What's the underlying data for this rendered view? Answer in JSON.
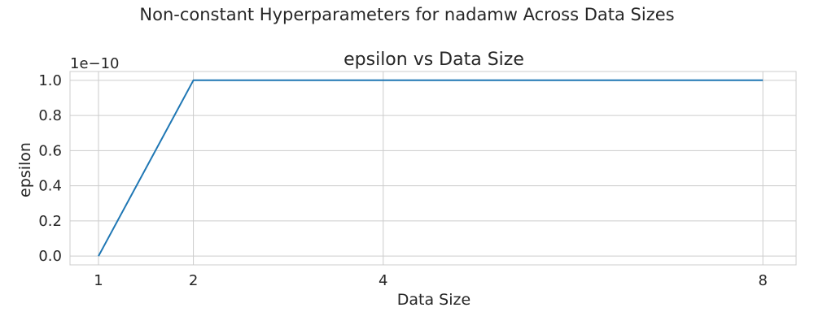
{
  "figure": {
    "suptitle": "Non-constant Hyperparameters for nadamw Across Data Sizes"
  },
  "chart_data": {
    "type": "line",
    "title": "epsilon vs Data Size",
    "xlabel": "Data Size",
    "ylabel": "epsilon",
    "offset_label": "1e−10",
    "xticks": [
      1,
      2,
      4,
      8
    ],
    "xtick_labels": [
      "1",
      "2",
      "4",
      "8"
    ],
    "yticks": [
      0.0,
      0.2,
      0.4,
      0.6,
      0.8,
      1.0
    ],
    "ytick_labels": [
      "0.0",
      "0.2",
      "0.4",
      "0.6",
      "0.8",
      "1.0"
    ],
    "xlim": [
      0.7,
      8.35
    ],
    "ylim": [
      -0.05,
      1.05
    ],
    "grid": true,
    "series": [
      {
        "color": "#1f77b4",
        "x": [
          1,
          2,
          4,
          8
        ],
        "y": [
          0.0,
          1.0,
          1.0,
          1.0
        ]
      }
    ]
  }
}
